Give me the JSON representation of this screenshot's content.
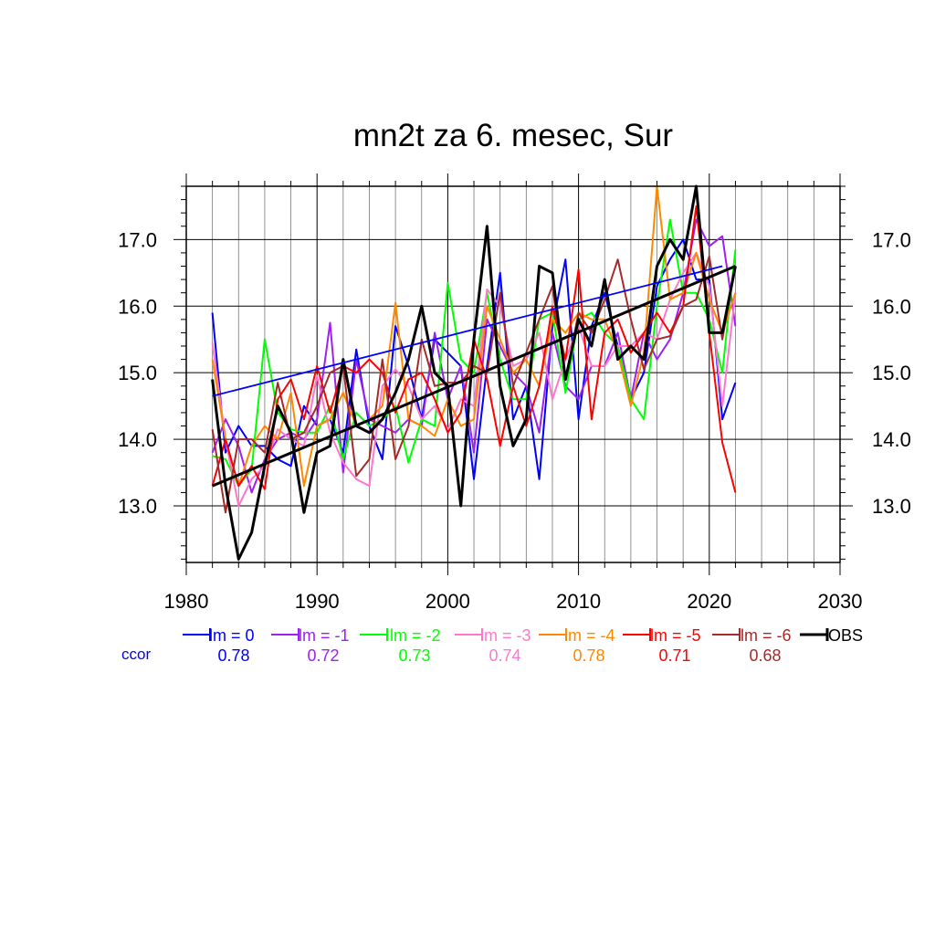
{
  "chart_data": {
    "type": "line",
    "title": "mn2t za 6. mesec, Sur",
    "xlim": [
      1980,
      2030
    ],
    "ylim": [
      12.15,
      17.8
    ],
    "x_ticks": [
      1980,
      1990,
      2000,
      2010,
      2020,
      2030
    ],
    "x_tick_labels": [
      "1980",
      "1990",
      "2000",
      "2010",
      "2020",
      "2030"
    ],
    "y_ticks": [
      13.0,
      14.0,
      15.0,
      16.0,
      17.0
    ],
    "y_tick_labels": [
      "13.0",
      "14.0",
      "15.0",
      "16.0",
      "17.0"
    ],
    "grid": true,
    "legend_placement": "bottom",
    "ccor_label": "ccor",
    "years": [
      1982,
      1983,
      1984,
      1985,
      1986,
      1987,
      1988,
      1989,
      1990,
      1991,
      1992,
      1993,
      1994,
      1995,
      1996,
      1997,
      1998,
      1999,
      2000,
      2001,
      2002,
      2003,
      2004,
      2005,
      2006,
      2007,
      2008,
      2009,
      2010,
      2011,
      2012,
      2013,
      2014,
      2015,
      2016,
      2017,
      2018,
      2019,
      2020,
      2021,
      2022
    ],
    "series": [
      {
        "name": "lm = 0",
        "color": "#0000ff",
        "ccor": "0.78",
        "values": [
          15.9,
          13.8,
          14.2,
          13.9,
          13.9,
          13.7,
          13.6,
          14.5,
          14.2,
          14.3,
          13.8,
          15.35,
          14.2,
          13.7,
          15.7,
          15.1,
          14.3,
          15.5,
          15.3,
          15.1,
          13.4,
          15.1,
          16.5,
          14.3,
          14.8,
          13.4,
          15.7,
          16.7,
          14.3,
          15.7,
          16.2,
          15.4,
          14.6,
          15.0,
          16.3,
          16.7,
          17.0,
          16.4,
          16.4,
          14.3,
          14.85
        ]
      },
      {
        "name": "lm = -1",
        "color": "#a020f0",
        "ccor": "0.72",
        "values": [
          13.8,
          14.3,
          13.9,
          13.2,
          13.7,
          14.0,
          14.1,
          14.0,
          14.3,
          15.75,
          13.5,
          15.2,
          14.3,
          14.2,
          14.1,
          14.3,
          14.2,
          15.6,
          14.6,
          15.1,
          13.8,
          15.8,
          15.4,
          15.0,
          14.8,
          14.1,
          15.6,
          14.8,
          14.6,
          15.1,
          15.1,
          15.6,
          14.6,
          15.6,
          15.2,
          15.5,
          16.2,
          17.3,
          16.9,
          17.05,
          15.7
        ]
      },
      {
        "name": "lm = -2",
        "color": "#00ff00",
        "ccor": "0.73",
        "values": [
          13.75,
          13.7,
          13.3,
          13.55,
          15.5,
          14.4,
          14.15,
          14.1,
          14.1,
          14.5,
          13.7,
          14.4,
          14.2,
          14.3,
          14.5,
          13.65,
          14.3,
          14.2,
          16.35,
          15.2,
          15.0,
          16.2,
          15.2,
          14.6,
          14.6,
          15.8,
          15.9,
          14.7,
          15.8,
          15.9,
          15.6,
          15.4,
          14.6,
          14.3,
          16.0,
          17.3,
          16.2,
          16.2,
          15.8,
          15.0,
          16.85
        ]
      },
      {
        "name": "lm = -3",
        "color": "#ff77cc",
        "ccor": "0.74",
        "values": [
          15.45,
          14.0,
          13.0,
          13.4,
          13.6,
          14.15,
          14.0,
          13.9,
          14.95,
          14.1,
          13.65,
          13.4,
          13.3,
          14.8,
          15.05,
          14.8,
          14.3,
          14.5,
          14.15,
          14.6,
          14.5,
          16.25,
          16.0,
          15.1,
          15.2,
          15.6,
          14.6,
          15.2,
          15.7,
          15.1,
          15.1,
          15.4,
          15.4,
          15.6,
          15.5,
          16.1,
          16.5,
          16.8,
          16.3,
          14.5,
          16.2
        ]
      },
      {
        "name": "lm = -4",
        "color": "#ff8800",
        "ccor": "0.78",
        "values": [
          15.2,
          14.0,
          13.3,
          13.9,
          14.2,
          14.0,
          14.7,
          13.3,
          14.2,
          14.3,
          14.7,
          14.2,
          14.3,
          14.5,
          16.05,
          14.3,
          14.2,
          14.05,
          14.6,
          14.2,
          14.3,
          16.0,
          15.5,
          15.0,
          15.2,
          14.8,
          15.8,
          15.6,
          15.9,
          15.8,
          15.8,
          15.3,
          14.5,
          15.3,
          17.8,
          16.1,
          16.2,
          16.8,
          16.1,
          15.6,
          16.2
        ]
      },
      {
        "name": "lm = -5",
        "color": "#ff0000",
        "ccor": "0.71",
        "values": [
          13.3,
          14.0,
          13.3,
          13.6,
          13.25,
          14.6,
          14.9,
          14.3,
          15.1,
          14.4,
          15.1,
          15.0,
          15.2,
          15.0,
          14.4,
          14.9,
          15.0,
          14.6,
          14.1,
          14.4,
          15.5,
          14.9,
          13.9,
          14.8,
          14.2,
          14.8,
          16.0,
          15.2,
          16.55,
          14.3,
          15.6,
          15.8,
          15.3,
          15.6,
          15.9,
          15.6,
          16.0,
          17.5,
          15.6,
          13.95,
          13.2
        ]
      },
      {
        "name": "lm = -6",
        "color": "#a52a2a",
        "ccor": "0.68",
        "values": [
          14.15,
          12.9,
          14.0,
          14.0,
          13.8,
          14.85,
          14.0,
          14.1,
          14.5,
          15.0,
          15.1,
          13.45,
          13.7,
          15.2,
          13.7,
          14.2,
          15.5,
          14.8,
          14.85,
          14.85,
          15.1,
          15.0,
          16.2,
          14.8,
          15.3,
          15.8,
          16.3,
          14.9,
          15.9,
          15.6,
          16.1,
          16.7,
          15.8,
          15.05,
          15.5,
          15.55,
          16.0,
          16.1,
          16.75,
          15.5,
          16.6
        ]
      },
      {
        "name": "OBS",
        "color": "#000000",
        "ccor": "",
        "values": [
          14.9,
          13.3,
          12.2,
          12.6,
          13.6,
          14.5,
          14.1,
          12.9,
          13.8,
          13.9,
          15.2,
          14.2,
          14.1,
          14.3,
          14.7,
          15.2,
          16.0,
          15.0,
          14.8,
          13.0,
          15.5,
          17.2,
          14.8,
          13.9,
          14.3,
          16.6,
          16.5,
          14.9,
          15.8,
          15.4,
          16.4,
          15.2,
          15.4,
          15.2,
          16.6,
          17.0,
          16.7,
          17.8,
          15.6,
          15.6,
          16.6
        ]
      }
    ],
    "trend_lines": [
      {
        "name": "lm = 0 trend",
        "color": "#0000ff",
        "x": [
          1982,
          2021
        ],
        "y": [
          14.65,
          16.6
        ]
      },
      {
        "name": "OBS trend",
        "color": "#000000",
        "x": [
          1982,
          2022
        ],
        "y": [
          13.3,
          16.6
        ]
      }
    ]
  }
}
